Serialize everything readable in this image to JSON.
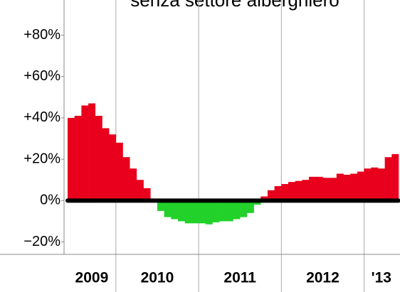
{
  "chart_data": {
    "type": "bar",
    "title": "senza settore alberghiero",
    "year_labels": [
      "2009",
      "2010",
      "2011",
      "2012",
      "'13"
    ],
    "values": [
      40,
      41,
      46,
      47,
      41,
      35,
      32,
      28,
      21,
      15.5,
      10,
      6,
      1,
      -5,
      -8,
      -9,
      -10,
      -11,
      -11,
      -11,
      -11.5,
      -10.5,
      -10,
      -10,
      -9,
      -8,
      -6,
      -2,
      2,
      5,
      7,
      8,
      9,
      9.5,
      10,
      11.5,
      11.5,
      11,
      11,
      13,
      12.5,
      13,
      14,
      15.5,
      16,
      15.5,
      21,
      22.5
    ],
    "positive_color": "#e8001c",
    "negative_color": "#22d12a",
    "ylim": [
      -26,
      97
    ],
    "yticks": [
      {
        "value": -20,
        "label": "−20%"
      },
      {
        "value": 0,
        "label": "0%"
      },
      {
        "value": 20,
        "label": "+20%"
      },
      {
        "value": 40,
        "label": "+40%"
      },
      {
        "value": 60,
        "label": "+60%"
      },
      {
        "value": 80,
        "label": "+80%"
      }
    ]
  }
}
